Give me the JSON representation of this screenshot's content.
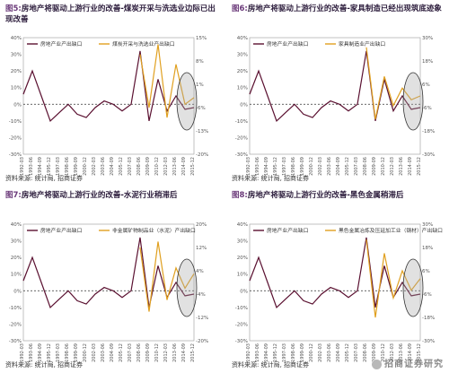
{
  "panels": [
    {
      "fig": "图5:",
      "title": "房地产将驱动上游行业的改善-煤炭开采与洗选业边际已出现改善",
      "source": "资料来源: 统计局, 招商证券",
      "chart_data": {
        "type": "line",
        "x": [
          "1992-03",
          "1993-06",
          "1994-09",
          "1995-12",
          "1997-03",
          "1998-06",
          "1999-09",
          "2000-12",
          "2002-03",
          "2003-06",
          "2004-09",
          "2005-12",
          "2007-03",
          "2008-06",
          "2009-09",
          "2010-12",
          "2012-03",
          "2013-06",
          "2014-09",
          "2015-12"
        ],
        "series": [
          {
            "name": "房地产业产出缺口",
            "axis": "left",
            "color": "#5a1030",
            "values": [
              0.06,
              0.2,
              0.05,
              -0.1,
              -0.05,
              0.0,
              -0.06,
              -0.08,
              -0.02,
              0.02,
              0.0,
              -0.04,
              0.0,
              0.32,
              -0.1,
              0.15,
              -0.04,
              0.05,
              -0.03,
              -0.02
            ]
          },
          {
            "name": "煤炭开采与洗选业产出缺口",
            "axis": "right",
            "color": "#e0a020",
            "values": [
              null,
              null,
              null,
              null,
              null,
              null,
              null,
              null,
              null,
              null,
              null,
              null,
              null,
              0.1,
              -0.06,
              0.13,
              -0.09,
              0.07,
              -0.05,
              -0.03
            ]
          }
        ],
        "ylim": [
          -0.3,
          0.4
        ],
        "y2lim": [
          -0.2,
          0.15
        ]
      }
    },
    {
      "fig": "图6:",
      "title": "房地产将驱动上游行业的改善-家具制造已经出现筑底迹象",
      "source": "资料来源: 统计局, 招商证券",
      "chart_data": {
        "type": "line",
        "x": [
          "1992-03",
          "1993-06",
          "1994-09",
          "1995-12",
          "1997-03",
          "1998-06",
          "1999-09",
          "2000-12",
          "2002-03",
          "2003-06",
          "2004-09",
          "2005-12",
          "2007-03",
          "2008-06",
          "2009-09",
          "2010-12",
          "2012-03",
          "2013-06",
          "2014-09",
          "2015-12"
        ],
        "series": [
          {
            "name": "房地产业产出缺口",
            "axis": "left",
            "color": "#5a1030",
            "values": [
              0.06,
              0.2,
              0.05,
              -0.1,
              -0.05,
              0.0,
              -0.06,
              -0.08,
              -0.02,
              0.02,
              0.0,
              -0.04,
              0.0,
              0.32,
              -0.1,
              0.15,
              -0.04,
              0.05,
              -0.03,
              -0.02
            ]
          },
          {
            "name": "家具制造业产出缺口",
            "axis": "right",
            "color": "#e0a020",
            "values": [
              null,
              null,
              null,
              null,
              null,
              null,
              null,
              null,
              null,
              null,
              null,
              null,
              null,
              0.25,
              -0.12,
              0.1,
              -0.05,
              0.04,
              -0.02,
              0.0
            ]
          }
        ],
        "ylim": [
          -0.3,
          0.4
        ],
        "y2lim": [
          -0.3,
          0.3
        ]
      }
    },
    {
      "fig": "图7:",
      "title": "房地产将驱动上游行业的改善-水泥行业稍滞后",
      "source": "资料来源: 统计局, 招商证券",
      "chart_data": {
        "type": "line",
        "x": [
          "1992-03",
          "1993-06",
          "1994-09",
          "1995-12",
          "1997-03",
          "1998-06",
          "1999-09",
          "2000-12",
          "2002-03",
          "2003-06",
          "2004-09",
          "2005-12",
          "2007-03",
          "2008-06",
          "2009-09",
          "2010-12",
          "2012-03",
          "2013-06",
          "2014-09",
          "2015-12"
        ],
        "series": [
          {
            "name": "房地产业产出缺口",
            "axis": "left",
            "color": "#5a1030",
            "values": [
              0.06,
              0.2,
              0.05,
              -0.1,
              -0.05,
              0.0,
              -0.06,
              -0.08,
              -0.02,
              0.02,
              0.0,
              -0.04,
              0.0,
              0.32,
              -0.1,
              0.15,
              -0.04,
              0.05,
              -0.03,
              -0.02
            ]
          },
          {
            "name": "非金属矿物制品业（水泥）产出缺口",
            "axis": "right",
            "color": "#e0a020",
            "values": [
              null,
              null,
              null,
              null,
              null,
              null,
              null,
              null,
              null,
              null,
              null,
              null,
              null,
              0.12,
              -0.1,
              0.14,
              -0.06,
              0.05,
              -0.02,
              0.03
            ]
          }
        ],
        "ylim": [
          -0.3,
          0.4
        ],
        "y2lim": [
          -0.2,
          0.2
        ]
      }
    },
    {
      "fig": "图8:",
      "title": "房地产将驱动上游行业的改善-黑色金属稍滞后",
      "source": "资料来源: 统计局, 招商证券",
      "chart_data": {
        "type": "line",
        "x": [
          "1992-03",
          "1993-06",
          "1994-09",
          "1995-12",
          "1997-03",
          "1998-06",
          "1999-09",
          "2000-12",
          "2002-03",
          "2003-06",
          "2004-09",
          "2005-12",
          "2007-03",
          "2008-06",
          "2009-09",
          "2010-12",
          "2012-03",
          "2013-06",
          "2014-09",
          "2015-12"
        ],
        "series": [
          {
            "name": "房地产业产出缺口",
            "axis": "left",
            "color": "#5a1030",
            "values": [
              0.06,
              0.2,
              0.05,
              -0.1,
              -0.05,
              0.0,
              -0.06,
              -0.08,
              -0.02,
              0.02,
              0.0,
              -0.04,
              0.0,
              0.32,
              -0.1,
              0.15,
              -0.04,
              0.05,
              -0.03,
              -0.02
            ]
          },
          {
            "name": "黑色金属冶炼及压延加工业（钢材）产出缺口",
            "axis": "right",
            "color": "#e0a020",
            "values": [
              null,
              null,
              null,
              null,
              null,
              null,
              null,
              null,
              null,
              null,
              null,
              null,
              null,
              0.22,
              -0.18,
              0.15,
              -0.08,
              0.06,
              -0.04,
              0.02
            ]
          }
        ],
        "ylim": [
          -0.3,
          0.4
        ],
        "y2lim": [
          -0.3,
          0.3
        ]
      }
    }
  ],
  "watermark": "招商证券研究"
}
